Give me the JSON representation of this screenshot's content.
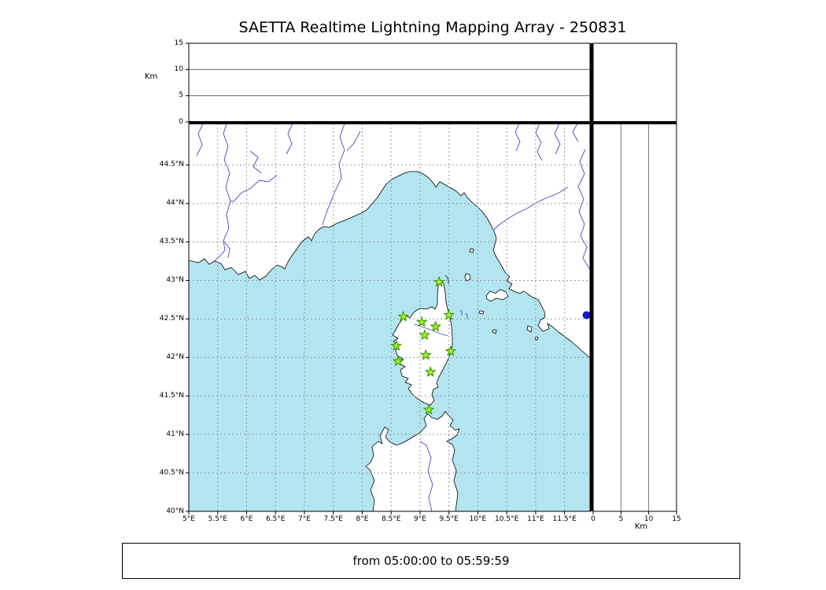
{
  "title": "SAETTA Realtime Lightning Mapping Array - 250831",
  "footer": {
    "label": "from 05:00:00 to 05:59:59"
  },
  "colors": {
    "sea": "#b3e5f0",
    "land": "#ffffff",
    "coast": "#000000",
    "river": "#4646c8",
    "grid": "#999999",
    "panel_gridline": "#555555",
    "station_fill": "#a8f032",
    "station_edge": "#3c9b00",
    "event": "#1515cd"
  },
  "axes": {
    "altitude": {
      "label": "Km",
      "max": 15,
      "gridlines": [
        5,
        10
      ],
      "ticks": [
        {
          "value": 0,
          "label": "0"
        },
        {
          "value": 5,
          "label": "5"
        },
        {
          "value": 10,
          "label": "10"
        },
        {
          "value": 15,
          "label": "15"
        }
      ]
    },
    "longitude": {
      "min": 5.0,
      "max": 11.94,
      "ticks": [
        {
          "value": 5,
          "label": "5°E"
        },
        {
          "value": 5.5,
          "label": "5.5°E"
        },
        {
          "value": 6,
          "label": "6°E"
        },
        {
          "value": 6.5,
          "label": "6.5°E"
        },
        {
          "value": 7,
          "label": "7°E"
        },
        {
          "value": 7.5,
          "label": "7.5°E"
        },
        {
          "value": 8,
          "label": "8°E"
        },
        {
          "value": 8.5,
          "label": "8.5°E"
        },
        {
          "value": 9,
          "label": "9°E"
        },
        {
          "value": 9.5,
          "label": "9.5°E"
        },
        {
          "value": 10,
          "label": "10°E"
        },
        {
          "value": 10.5,
          "label": "10.5°E"
        },
        {
          "value": 11,
          "label": "11°E"
        },
        {
          "value": 11.5,
          "label": "11.5°E"
        }
      ]
    },
    "latitude": {
      "min": 40.0,
      "max": 45.04,
      "ticks": [
        {
          "value": 40,
          "label": "40°N"
        },
        {
          "value": 40.5,
          "label": "40.5°N"
        },
        {
          "value": 41,
          "label": "41°N"
        },
        {
          "value": 41.5,
          "label": "41.5°N"
        },
        {
          "value": 42,
          "label": "42°N"
        },
        {
          "value": 42.5,
          "label": "42.5°N"
        },
        {
          "value": 43,
          "label": "43°N"
        },
        {
          "value": 43.5,
          "label": "43.5°N"
        },
        {
          "value": 44,
          "label": "44°N"
        },
        {
          "value": 44.5,
          "label": "44.5°N"
        }
      ]
    }
  },
  "stations": [
    {
      "lon": 9.33,
      "lat": 42.98
    },
    {
      "lon": 8.71,
      "lat": 42.53
    },
    {
      "lon": 9.03,
      "lat": 42.46
    },
    {
      "lon": 9.5,
      "lat": 42.55
    },
    {
      "lon": 9.27,
      "lat": 42.4
    },
    {
      "lon": 9.08,
      "lat": 42.29
    },
    {
      "lon": 8.59,
      "lat": 42.15
    },
    {
      "lon": 9.53,
      "lat": 42.08
    },
    {
      "lon": 8.62,
      "lat": 41.95
    },
    {
      "lon": 9.1,
      "lat": 42.03
    },
    {
      "lon": 9.18,
      "lat": 41.81
    },
    {
      "lon": 9.15,
      "lat": 41.32
    }
  ],
  "event_marker": {
    "lon": 11.88,
    "lat": 42.55
  }
}
